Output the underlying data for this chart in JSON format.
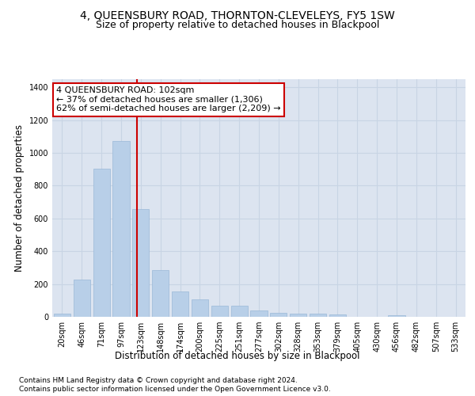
{
  "title": "4, QUEENSBURY ROAD, THORNTON-CLEVELEYS, FY5 1SW",
  "subtitle": "Size of property relative to detached houses in Blackpool",
  "xlabel": "Distribution of detached houses by size in Blackpool",
  "ylabel": "Number of detached properties",
  "footnote1": "Contains HM Land Registry data © Crown copyright and database right 2024.",
  "footnote2": "Contains public sector information licensed under the Open Government Licence v3.0.",
  "categories": [
    "20sqm",
    "46sqm",
    "71sqm",
    "97sqm",
    "123sqm",
    "148sqm",
    "174sqm",
    "200sqm",
    "225sqm",
    "251sqm",
    "277sqm",
    "302sqm",
    "328sqm",
    "353sqm",
    "379sqm",
    "405sqm",
    "430sqm",
    "456sqm",
    "482sqm",
    "507sqm",
    "533sqm"
  ],
  "values": [
    20,
    225,
    905,
    1075,
    655,
    285,
    155,
    105,
    70,
    70,
    37,
    25,
    20,
    20,
    15,
    0,
    0,
    10,
    0,
    0,
    0
  ],
  "bar_color": "#b8cfe8",
  "bar_edge_color": "#9ab8d8",
  "grid_color": "#c8d4e4",
  "background_color": "#dce4f0",
  "vline_x_index": 3.82,
  "vline_color": "#cc0000",
  "annotation_text": "4 QUEENSBURY ROAD: 102sqm\n← 37% of detached houses are smaller (1,306)\n62% of semi-detached houses are larger (2,209) →",
  "annotation_box_color": "#ffffff",
  "annotation_box_edge": "#cc0000",
  "ylim": [
    0,
    1450
  ],
  "yticks": [
    0,
    200,
    400,
    600,
    800,
    1000,
    1200,
    1400
  ],
  "title_fontsize": 10,
  "subtitle_fontsize": 9,
  "axis_label_fontsize": 8.5,
  "tick_fontsize": 7,
  "annotation_fontsize": 8,
  "footnote_fontsize": 6.5
}
